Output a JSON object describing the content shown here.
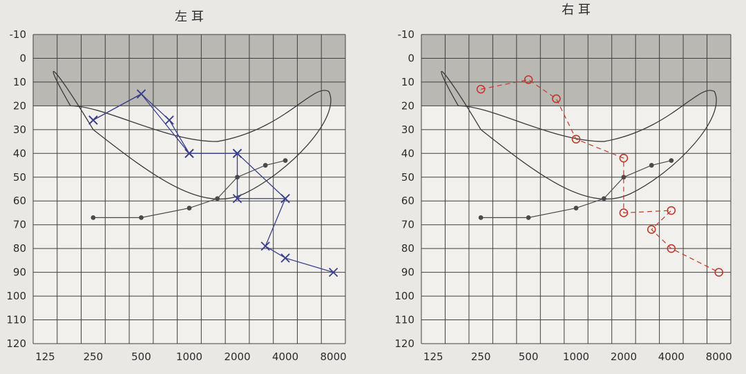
{
  "chart_data": [
    {
      "type": "scatter",
      "title": "左 耳",
      "x_ticks": [
        "125",
        "250",
        "500",
        "1000",
        "2000",
        "4000",
        "8000"
      ],
      "y_ticks": [
        "-10",
        "0",
        "10",
        "20",
        "30",
        "40",
        "50",
        "60",
        "70",
        "80",
        "90",
        "100",
        "110",
        "120"
      ],
      "ylim": [
        -10,
        120
      ],
      "y_inverted": true,
      "shaded_band": [
        -10,
        20
      ],
      "grid": true,
      "series": [
        {
          "color": "#4a4a4a",
          "marker": "dot",
          "points": [
            [
              250,
              67
            ],
            [
              500,
              67
            ],
            [
              1000,
              63
            ],
            [
              1500,
              59
            ],
            [
              2000,
              50
            ],
            [
              3000,
              45
            ],
            [
              4000,
              43
            ]
          ]
        },
        {
          "color": "#3a3f8a",
          "marker": "x",
          "points": [
            [
              250,
              26
            ],
            [
              500,
              15
            ],
            [
              750,
              26
            ],
            [
              1000,
              40
            ],
            [
              2000,
              40
            ],
            [
              2000,
              59
            ],
            [
              4000,
              59
            ],
            [
              3000,
              79
            ],
            [
              4000,
              84
            ],
            [
              8000,
              90
            ]
          ]
        },
        {
          "color": "#3a3f8a",
          "marker": "x",
          "points": [
            [
              250,
              26
            ],
            [
              500,
              15
            ],
            [
              1000,
              40
            ],
            [
              2000,
              40
            ],
            [
              4000,
              59
            ]
          ]
        }
      ]
    },
    {
      "type": "scatter",
      "title": "右 耳",
      "x_ticks": [
        "125",
        "250",
        "500",
        "1000",
        "2000",
        "4000",
        "8000"
      ],
      "y_ticks": [
        "-10",
        "0",
        "10",
        "20",
        "30",
        "40",
        "50",
        "60",
        "70",
        "80",
        "90",
        "100",
        "110",
        "120"
      ],
      "ylim": [
        -10,
        120
      ],
      "y_inverted": true,
      "shaded_band": [
        -10,
        20
      ],
      "grid": true,
      "series": [
        {
          "color": "#4a4a4a",
          "marker": "dot",
          "points": [
            [
              250,
              67
            ],
            [
              500,
              67
            ],
            [
              1000,
              63
            ],
            [
              1500,
              59
            ],
            [
              2000,
              50
            ],
            [
              3000,
              45
            ],
            [
              4000,
              43
            ]
          ]
        },
        {
          "color": "#c0392b",
          "marker": "o",
          "points": [
            [
              250,
              13
            ],
            [
              500,
              9
            ],
            [
              750,
              17
            ],
            [
              1000,
              34
            ],
            [
              2000,
              42
            ],
            [
              2000,
              65
            ],
            [
              4000,
              64
            ],
            [
              3000,
              72
            ],
            [
              4000,
              80
            ],
            [
              8000,
              90
            ]
          ]
        }
      ]
    }
  ]
}
